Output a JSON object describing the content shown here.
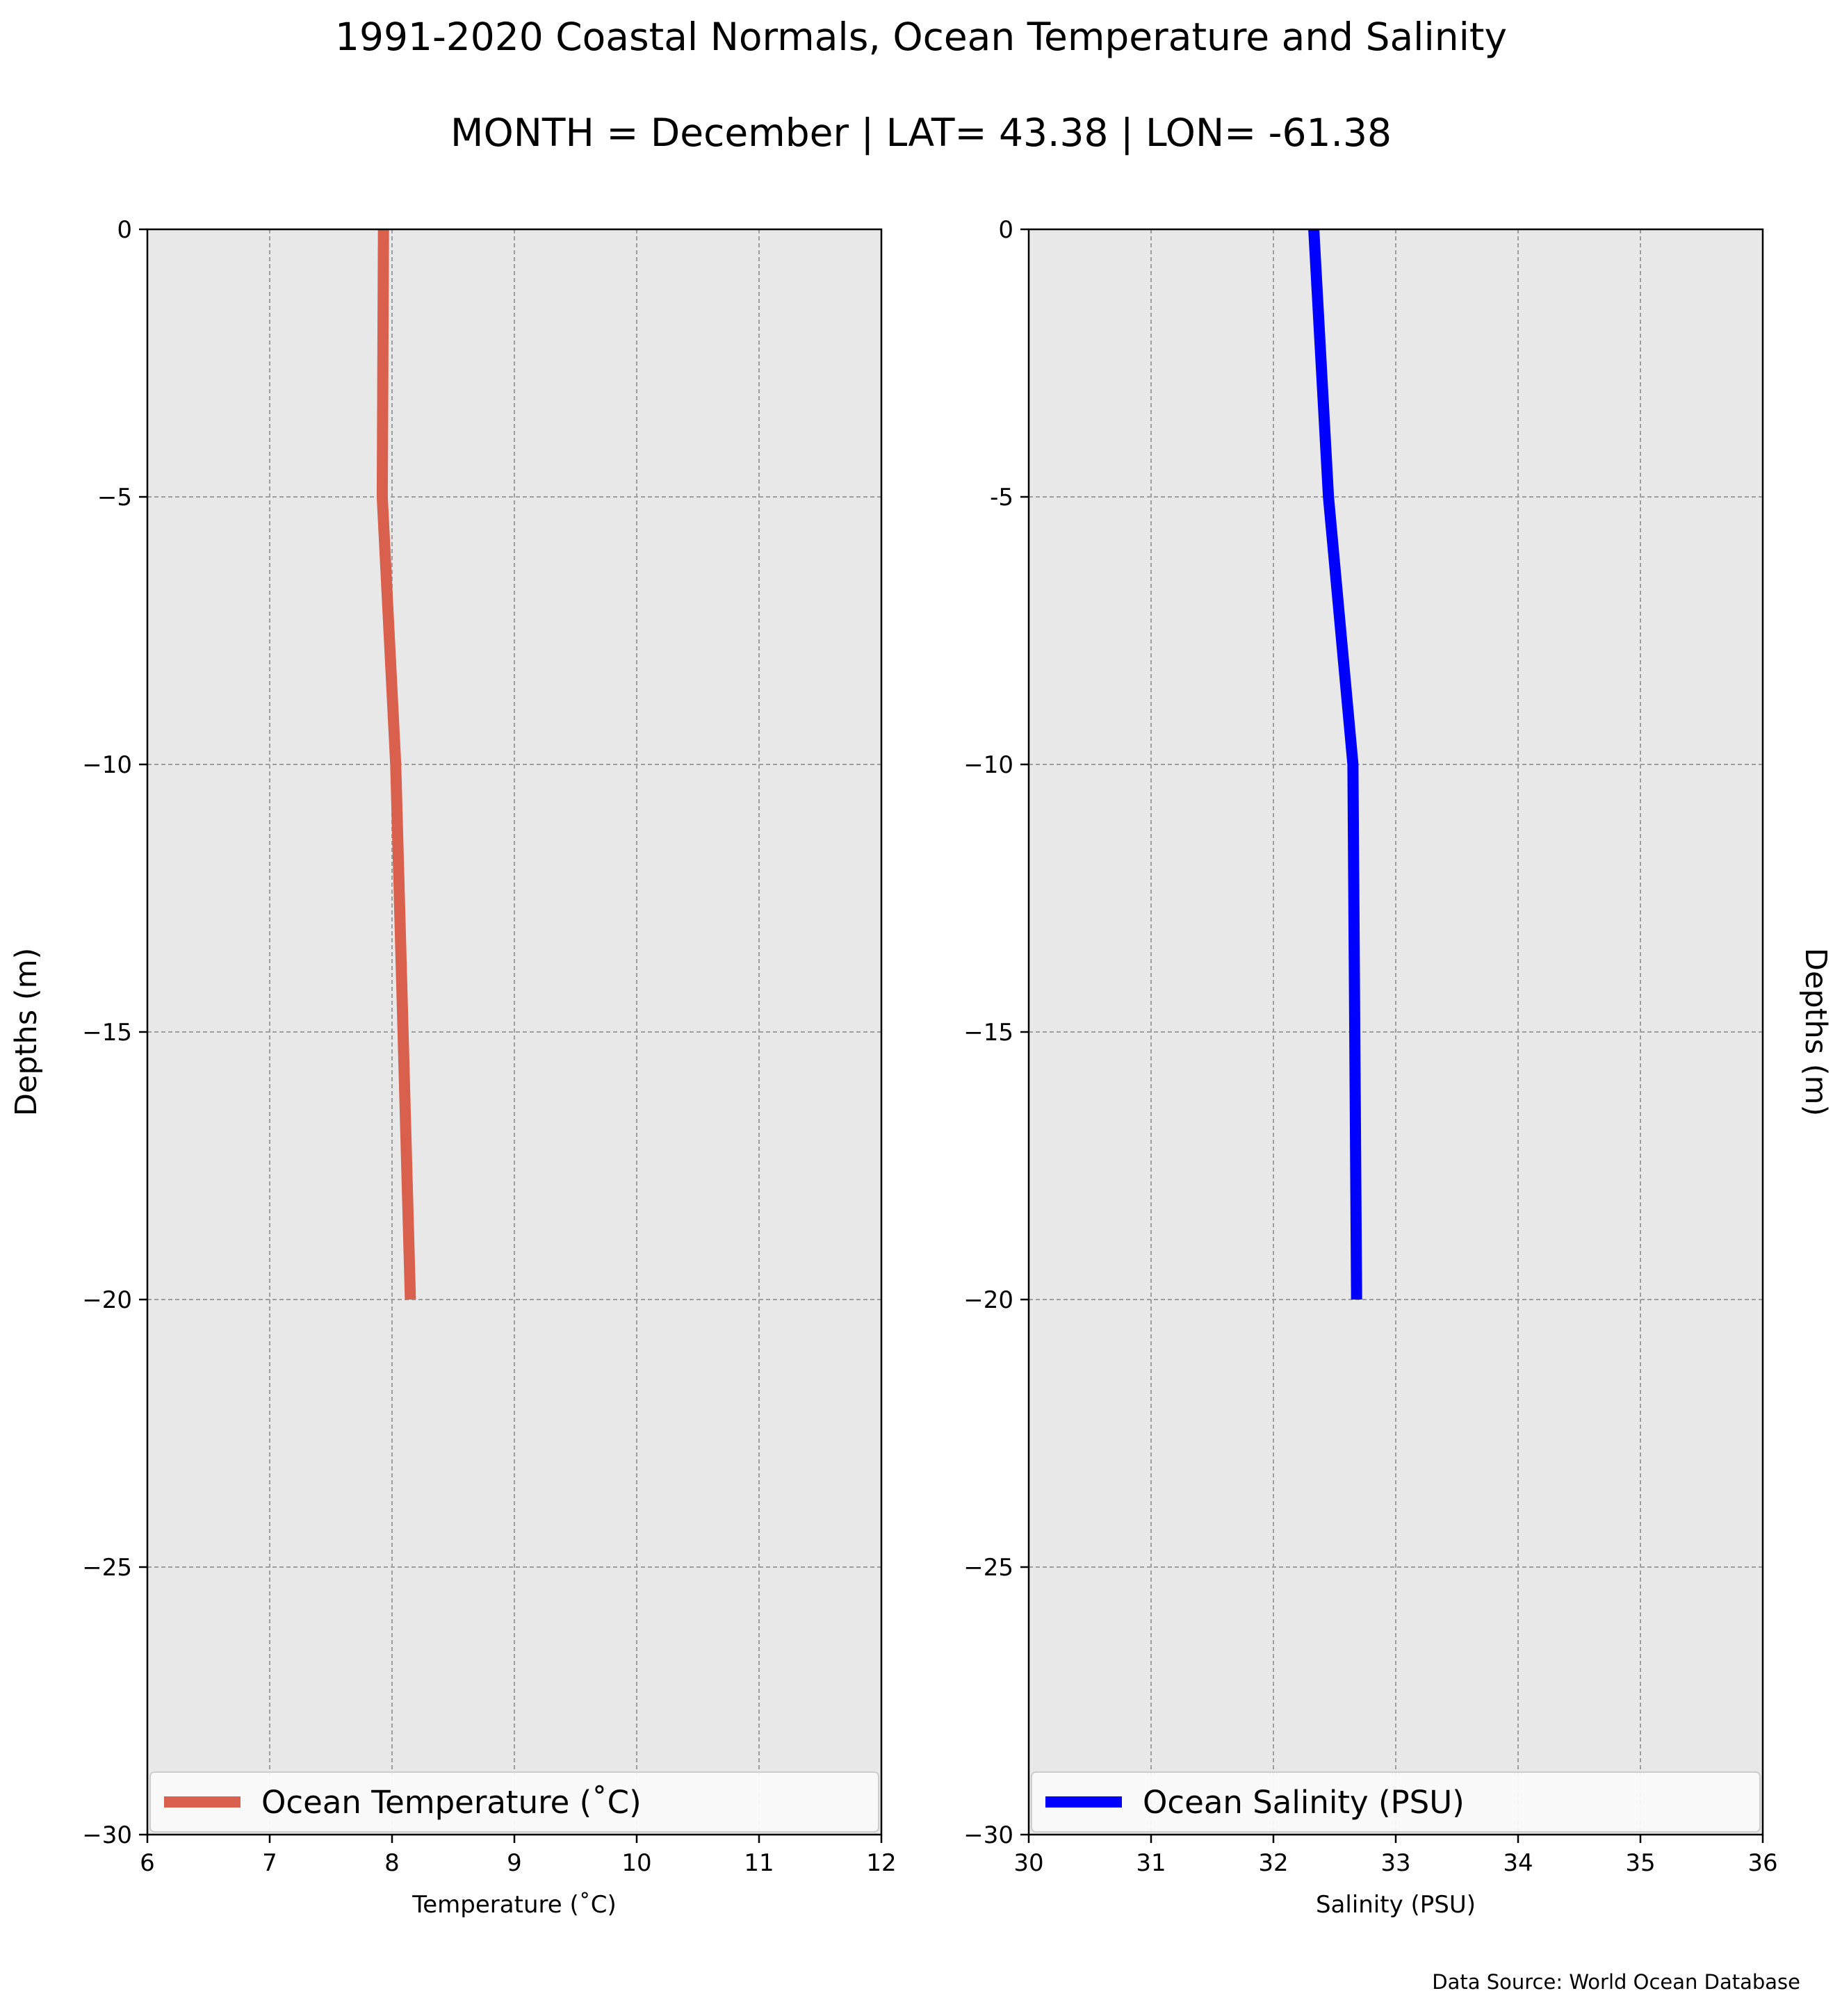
{
  "figure": {
    "title_line1": "1991-2020 Coastal Normals, Ocean Temperature and Salinity",
    "title_line2": "MONTH = December | LAT= 43.38 | LON= -61.38",
    "source_note": "Data Source: World Ocean Database"
  },
  "chart_data": [
    {
      "type": "line",
      "xlabel": "Temperature ($^\\circ$C)",
      "xlabel_display": "Temperature (˚C)",
      "ylabel": "Depths (m)",
      "ylabel_side": "left",
      "xlim": [
        6,
        12
      ],
      "ylim": [
        -30,
        0
      ],
      "xticks": [
        6,
        7,
        8,
        9,
        10,
        11,
        12
      ],
      "yticks": [
        0,
        -5,
        -10,
        -15,
        -20,
        -25,
        -30
      ],
      "ytick_labels": [
        "0",
        "−5",
        "−10",
        "−15",
        "−20",
        "−25",
        "−30"
      ],
      "grid": true,
      "legend_position": "bottom",
      "series": [
        {
          "name": "Ocean Temperature ($^\\circ$C)",
          "name_display": "Ocean Temperature (˚C)",
          "color": "#d9604c",
          "x": [
            7.93,
            7.92,
            8.03,
            8.15
          ],
          "y": [
            0,
            -5,
            -10,
            -20
          ]
        }
      ]
    },
    {
      "type": "line",
      "xlabel": "Salinity (PSU)",
      "xlabel_display": "Salinity (PSU)",
      "ylabel": "Depths (m)",
      "ylabel_side": "right",
      "xlim": [
        30,
        36
      ],
      "ylim": [
        -30,
        0
      ],
      "xticks": [
        30,
        31,
        32,
        33,
        34,
        35,
        36
      ],
      "yticks": [
        0,
        -5,
        -10,
        -15,
        -20,
        -25,
        -30
      ],
      "ytick_labels": [
        "0",
        "-5",
        "−10",
        "−15",
        "−20",
        "−25",
        "−30"
      ],
      "grid": true,
      "legend_position": "bottom",
      "series": [
        {
          "name": "Ocean Salinity (PSU)",
          "name_display": "Ocean Salinity (PSU)",
          "color": "#0000ff",
          "x": [
            32.33,
            32.45,
            32.65,
            32.68
          ],
          "y": [
            0,
            -5,
            -10,
            -20
          ]
        }
      ]
    }
  ],
  "colors": {
    "plot_background": "#e8e8e8",
    "grid": "#9e9e9e",
    "legend_background": "#fafafa",
    "legend_border": "#cccccc"
  }
}
